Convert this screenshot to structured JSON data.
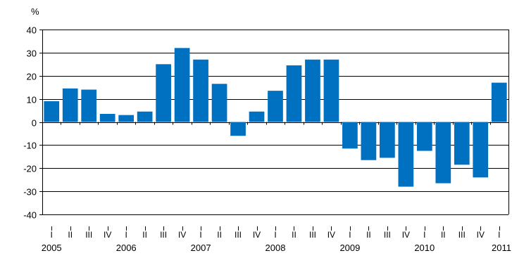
{
  "chart_data": {
    "type": "bar",
    "unit_label": "%",
    "ylim": [
      -40,
      40
    ],
    "yticks": [
      40,
      30,
      20,
      10,
      0,
      -10,
      -20,
      -30,
      -40
    ],
    "grid": true,
    "bar_color": "#0070C0",
    "categories": [
      "I",
      "II",
      "III",
      "IV",
      "I",
      "II",
      "III",
      "IV",
      "I",
      "II",
      "III",
      "IV",
      "I",
      "II",
      "III",
      "IV",
      "I",
      "II",
      "III",
      "IV",
      "I",
      "II",
      "III",
      "IV",
      "I"
    ],
    "years": [
      "2005",
      "2006",
      "2007",
      "2008",
      "2009",
      "2010",
      "2011"
    ],
    "values": [
      9,
      14.5,
      14,
      3.5,
      3,
      4.5,
      25,
      32,
      27,
      16.5,
      -6,
      4.5,
      13.5,
      24.5,
      27,
      27,
      -11.5,
      -16.5,
      -15.5,
      -28,
      -12.5,
      -26.5,
      -18.5,
      -24,
      17
    ]
  }
}
